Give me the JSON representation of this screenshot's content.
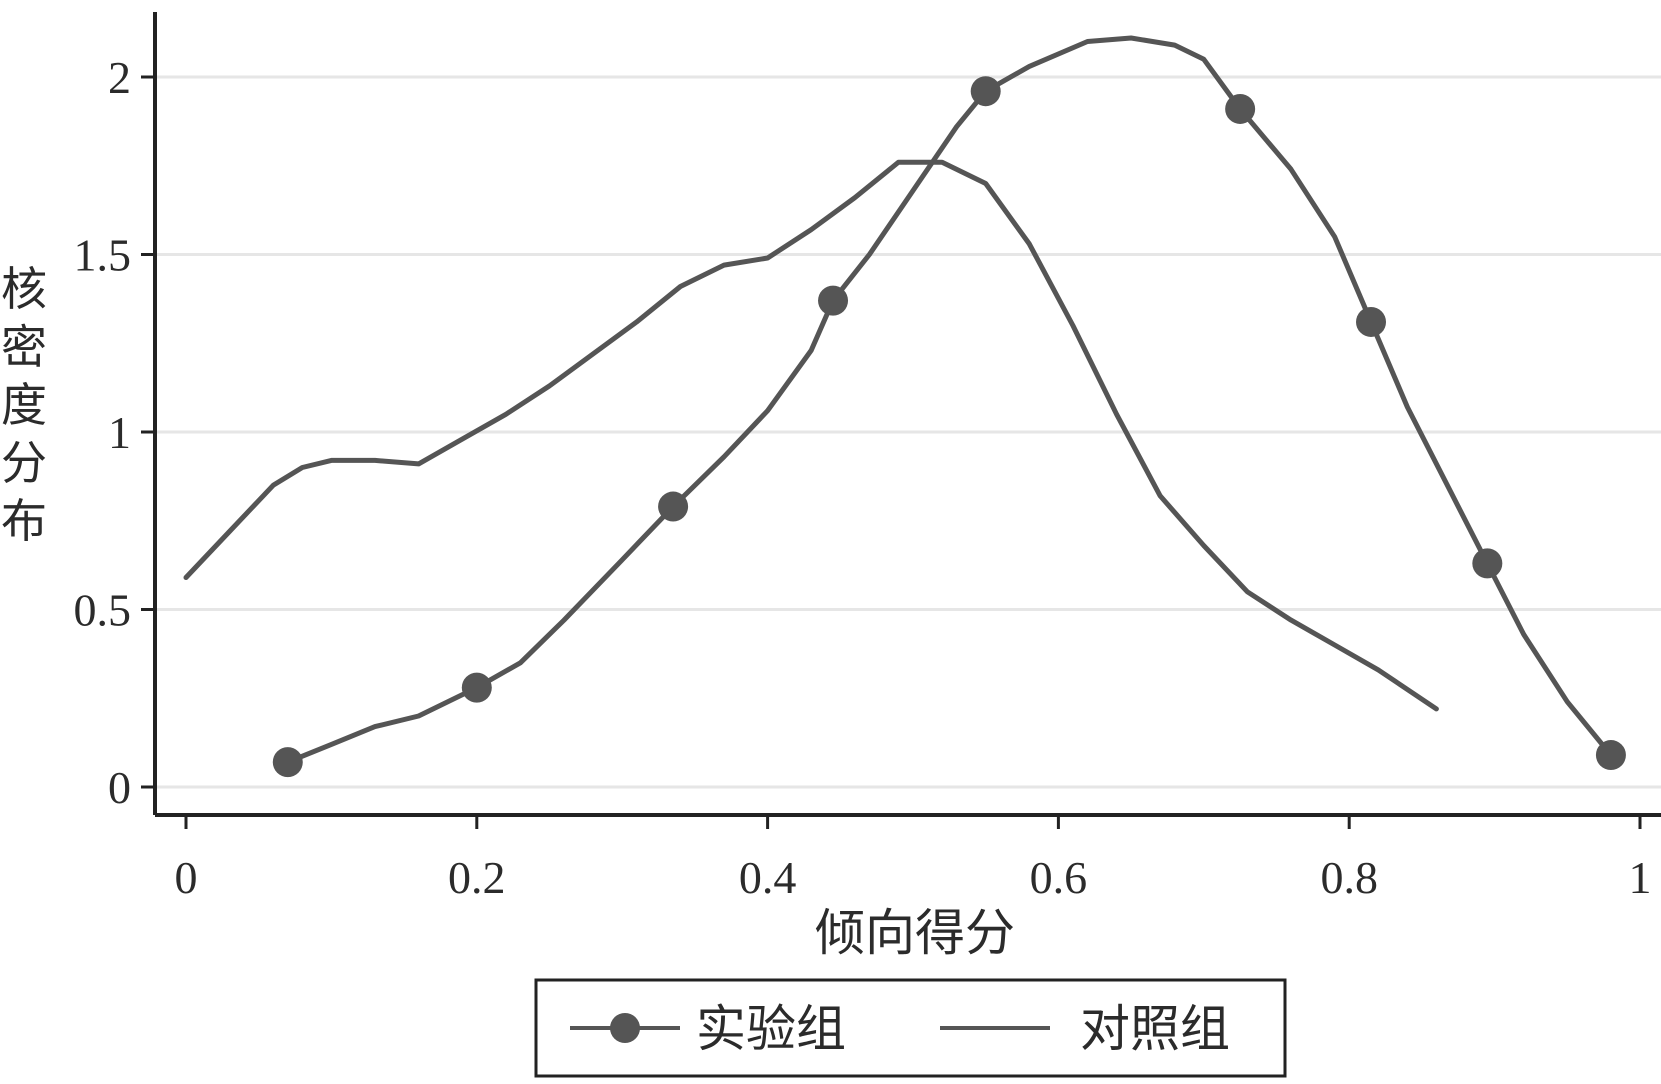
{
  "chart_data": {
    "type": "line",
    "title": "",
    "xlabel": "倾向得分",
    "ylabel": "核密度分布",
    "xlim": [
      0,
      1
    ],
    "ylim": [
      0,
      2.2
    ],
    "x_ticks": [
      "0",
      "0.2",
      "0.4",
      "0.6",
      "0.8",
      "1"
    ],
    "y_ticks": [
      "0",
      "0.5",
      "1",
      "1.5",
      "2"
    ],
    "grid": "horizontal",
    "legend_position": "bottom",
    "series": [
      {
        "name": "实验组",
        "marker": "circle",
        "x": [
          0.07,
          0.1,
          0.13,
          0.16,
          0.2,
          0.23,
          0.26,
          0.3,
          0.335,
          0.37,
          0.4,
          0.43,
          0.445,
          0.47,
          0.5,
          0.53,
          0.55,
          0.58,
          0.62,
          0.65,
          0.68,
          0.7,
          0.725,
          0.76,
          0.79,
          0.815,
          0.84,
          0.87,
          0.895,
          0.92,
          0.95,
          0.98
        ],
        "y": [
          0.07,
          0.12,
          0.17,
          0.2,
          0.28,
          0.35,
          0.47,
          0.64,
          0.79,
          0.93,
          1.06,
          1.23,
          1.37,
          1.5,
          1.68,
          1.86,
          1.96,
          2.03,
          2.1,
          2.11,
          2.09,
          2.05,
          1.91,
          1.74,
          1.55,
          1.31,
          1.07,
          0.83,
          0.63,
          0.43,
          0.24,
          0.09
        ],
        "marker_x": [
          0.07,
          0.2,
          0.335,
          0.445,
          0.55,
          0.725,
          0.815,
          0.895,
          0.98
        ],
        "marker_y": [
          0.07,
          0.28,
          0.79,
          1.37,
          1.96,
          1.91,
          1.31,
          0.63,
          0.09
        ]
      },
      {
        "name": "对照组",
        "marker": "none",
        "x": [
          0.0,
          0.03,
          0.06,
          0.08,
          0.1,
          0.13,
          0.16,
          0.19,
          0.22,
          0.25,
          0.28,
          0.31,
          0.34,
          0.37,
          0.4,
          0.43,
          0.46,
          0.49,
          0.52,
          0.55,
          0.58,
          0.61,
          0.64,
          0.67,
          0.7,
          0.73,
          0.76,
          0.79,
          0.82,
          0.86
        ],
        "y": [
          0.59,
          0.72,
          0.85,
          0.9,
          0.92,
          0.92,
          0.91,
          0.98,
          1.05,
          1.13,
          1.22,
          1.31,
          1.41,
          1.47,
          1.49,
          1.57,
          1.66,
          1.76,
          1.76,
          1.7,
          1.53,
          1.3,
          1.05,
          0.82,
          0.68,
          0.55,
          0.47,
          0.4,
          0.33,
          0.22
        ]
      }
    ]
  },
  "colors": {
    "line": "#555555",
    "marker": "#555555",
    "axis": "#222222",
    "grid": "#e6e6e6",
    "text": "#2b2b2b"
  }
}
